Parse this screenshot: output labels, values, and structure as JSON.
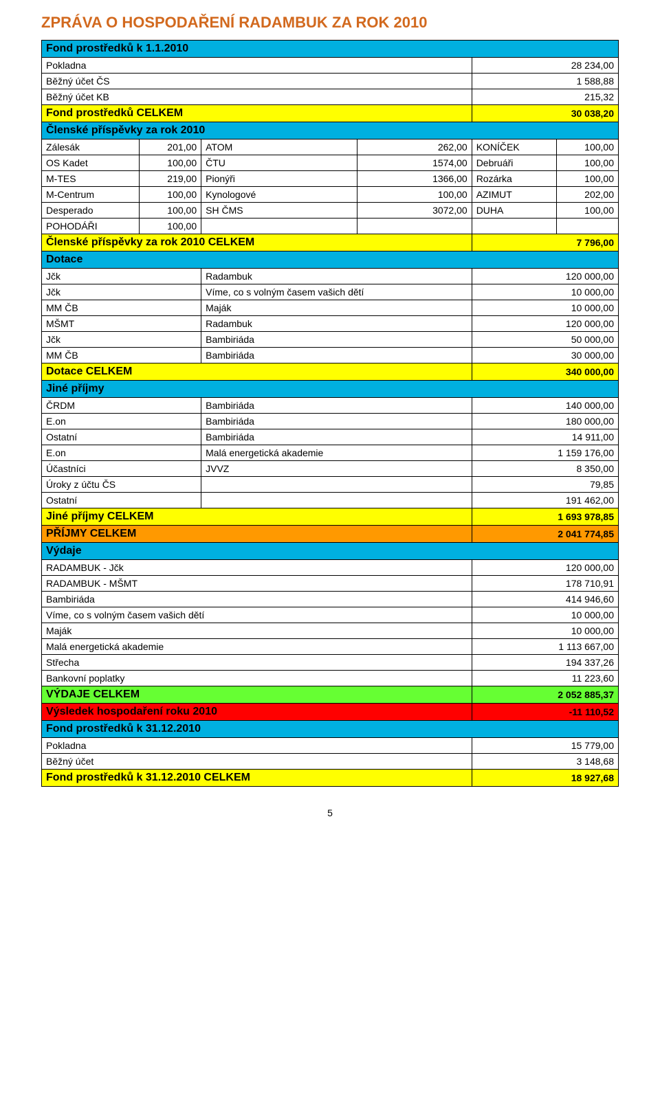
{
  "title": "ZPRÁVA O HOSPODAŘENÍ RADAMBUK ZA ROK 2010",
  "title_color": "#d2691e",
  "page_number": "5",
  "colors": {
    "blue": "#00b0e0",
    "yellow": "#ffff00",
    "orange": "#ff9900",
    "green": "#66ff33",
    "red": "#ff0000"
  },
  "sections": {
    "fond_start": {
      "header": "Fond prostředků k 1.1.2010",
      "rows": [
        {
          "label": "Pokladna",
          "value": "28 234,00"
        },
        {
          "label": "Běžný účet ČS",
          "value": "1 588,88"
        },
        {
          "label": "Běžný účet KB",
          "value": "215,32"
        }
      ],
      "total": {
        "label": "Fond prostředků CELKEM",
        "value": "30 038,20"
      }
    },
    "clenske": {
      "header": "Členské příspěvky za rok 2010",
      "rows": [
        {
          "c1": "Zálesák",
          "c2": "201,00",
          "c3": "ATOM",
          "c4": "262,00",
          "c5": "KONÍČEK",
          "c6": "100,00"
        },
        {
          "c1": "OS Kadet",
          "c2": "100,00",
          "c3": "ČTU",
          "c4": "1574,00",
          "c5": "Debruáři",
          "c6": "100,00"
        },
        {
          "c1": "M-TES",
          "c2": "219,00",
          "c3": "Pionýři",
          "c4": "1366,00",
          "c5": "Rozárka",
          "c6": "100,00"
        },
        {
          "c1": "M-Centrum",
          "c2": "100,00",
          "c3": "Kynologové",
          "c4": "100,00",
          "c5": "AZIMUT",
          "c6": "202,00"
        },
        {
          "c1": "Desperado",
          "c2": "100,00",
          "c3": "SH ČMS",
          "c4": "3072,00",
          "c5": "DUHA",
          "c6": "100,00"
        },
        {
          "c1": "POHODÁŘI",
          "c2": "100,00",
          "c3": "",
          "c4": "",
          "c5": "",
          "c6": ""
        }
      ],
      "total": {
        "label": "Členské příspěvky za rok 2010 CELKEM",
        "value": "7 796,00"
      }
    },
    "dotace": {
      "header": "Dotace",
      "rows": [
        {
          "c1": "Jčk",
          "c2": "Radambuk",
          "c3": "120 000,00"
        },
        {
          "c1": "Jčk",
          "c2": "Víme, co s volným časem vašich dětí",
          "c3": "10 000,00"
        },
        {
          "c1": "MM ČB",
          "c2": "Maják",
          "c3": "10 000,00"
        },
        {
          "c1": "MŠMT",
          "c2": "Radambuk",
          "c3": "120 000,00"
        },
        {
          "c1": "Jčk",
          "c2": "Bambiriáda",
          "c3": "50 000,00"
        },
        {
          "c1": "MM ČB",
          "c2": "Bambiriáda",
          "c3": "30 000,00"
        }
      ],
      "total": {
        "label": "Dotace CELKEM",
        "value": "340 000,00"
      }
    },
    "jine_prijmy": {
      "header": "Jiné příjmy",
      "rows": [
        {
          "c1": "ČRDM",
          "c2": "Bambiriáda",
          "c3": "140 000,00"
        },
        {
          "c1": "E.on",
          "c2": "Bambiriáda",
          "c3": "180 000,00"
        },
        {
          "c1": "Ostatní",
          "c2": "Bambiriáda",
          "c3": "14 911,00"
        },
        {
          "c1": "E.on",
          "c2": "Malá energetická akademie",
          "c3": "1 159 176,00"
        },
        {
          "c1": "Účastníci",
          "c2": "JVVZ",
          "c3": "8 350,00"
        },
        {
          "c1": "Úroky z účtu ČS",
          "c2": "",
          "c3": "79,85"
        },
        {
          "c1": "Ostatní",
          "c2": "",
          "c3": "191 462,00"
        }
      ],
      "total": {
        "label": "Jiné příjmy CELKEM",
        "value": "1 693 978,85"
      }
    },
    "prijmy_total": {
      "label": "PŘÍJMY CELKEM",
      "value": "2 041 774,85"
    },
    "vydaje": {
      "header": "Výdaje",
      "rows": [
        {
          "label": "RADAMBUK - Jčk",
          "value": "120 000,00"
        },
        {
          "label": "RADAMBUK - MŠMT",
          "value": "178 710,91"
        },
        {
          "label": "Bambiriáda",
          "value": "414 946,60"
        },
        {
          "label": "Víme, co s volným časem vašich dětí",
          "value": "10 000,00"
        },
        {
          "label": "Maják",
          "value": "10 000,00"
        },
        {
          "label": "Malá energetická akademie",
          "value": "1 113 667,00"
        },
        {
          "label": "Střecha",
          "value": "194 337,26"
        },
        {
          "label": "Bankovní poplatky",
          "value": "11 223,60"
        }
      ],
      "total": {
        "label": "VÝDAJE CELKEM",
        "value": "2 052 885,37"
      }
    },
    "vysledek": {
      "label": "Výsledek hospodaření roku 2010",
      "value": "-11 110,52"
    },
    "fond_end": {
      "header": "Fond prostředků k 31.12.2010",
      "rows": [
        {
          "label": "Pokladna",
          "value": "15 779,00"
        },
        {
          "label": "Běžný účet",
          "value": "3 148,68"
        }
      ],
      "total": {
        "label": "Fond prostředků k 31.12.2010 CELKEM",
        "value": "18 927,68"
      }
    }
  }
}
